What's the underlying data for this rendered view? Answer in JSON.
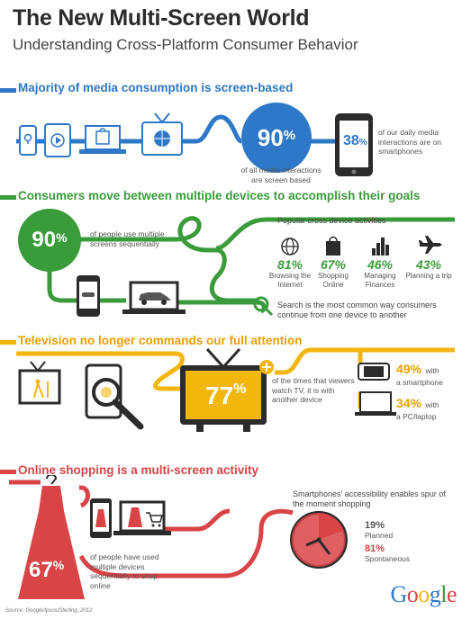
{
  "header": {
    "title": "The New Multi-Screen World",
    "subtitle": "Understanding Cross-Platform Consumer Behavior"
  },
  "section1": {
    "heading": "Majority of media consumption is screen-based",
    "big_pct": "90",
    "big_pct_sign": "%",
    "big_caption": "of all media interactions are screen based",
    "phone_pct": "38",
    "phone_pct_sign": "%",
    "phone_caption": "of our daily media interactions are on smartphones",
    "icons": [
      "phone-map-icon",
      "tablet-play-icon",
      "laptop-bag-icon",
      "tv-ball-icon"
    ]
  },
  "section2": {
    "heading": "Consumers move between multiple devices to accomplish their goals",
    "big_pct": "90",
    "big_pct_sign": "%",
    "big_caption": "of people use multiple screens sequentially",
    "activities_title": "Popular cross device activities",
    "activities": [
      {
        "pct": "81%",
        "label": "Browsing the Internet",
        "icon": "globe-icon"
      },
      {
        "pct": "67%",
        "label": "Shopping Online",
        "icon": "shopping-bag-icon"
      },
      {
        "pct": "46%",
        "label": "Managing Finances",
        "icon": "bar-chart-icon"
      },
      {
        "pct": "43%",
        "label": "Planning a trip",
        "icon": "airplane-icon"
      }
    ],
    "search_note": "Search is the most common way consumers continue from one device to another"
  },
  "section3": {
    "heading": "Television no longer commands our full attention",
    "big_pct": "77",
    "big_pct_sign": "%",
    "big_caption": "of the times that viewers watch TV, it is with another device",
    "smartphone_pct": "49%",
    "smartphone_with": "with",
    "smartphone_caption": "a smartphone",
    "pc_pct": "34%",
    "pc_with": "with",
    "pc_caption": "a PC/laptop"
  },
  "section4": {
    "heading": "Online shopping is a multi-screen activity",
    "big_pct": "67",
    "big_pct_sign": "%",
    "big_caption": "of people have used multiple devices sequentially to shop online",
    "spur_caption": "Smartphones' accessibility enables spur of the moment shopping",
    "planned_pct": "19%",
    "planned_label": "Planned",
    "spont_pct": "81%",
    "spont_label": "Spontaneous"
  },
  "footer": {
    "source": "Source: Google/Ipsos/Sterling, 2012",
    "logo": "Google"
  },
  "colors": {
    "blue": "#2e78c8",
    "green": "#3a9b3a",
    "orange": "#f2b60c",
    "red": "#d94446"
  }
}
